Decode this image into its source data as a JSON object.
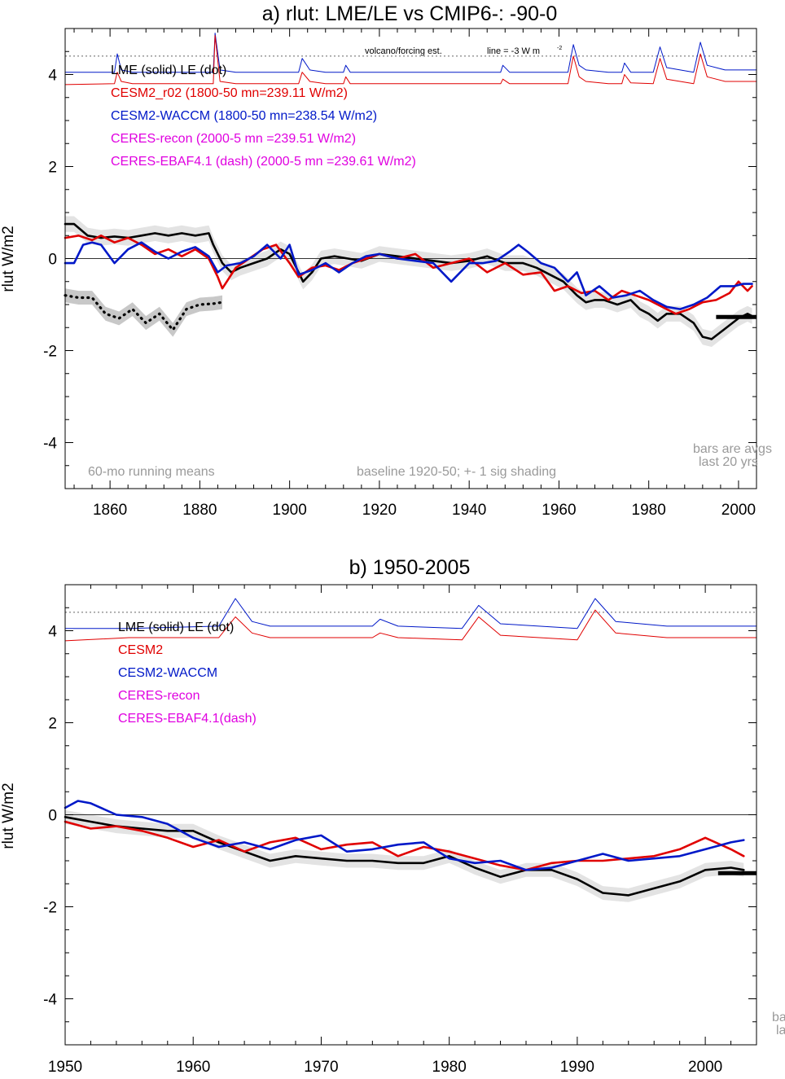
{
  "chart_data": [
    {
      "type": "line",
      "title": "a) rlut: LME/LE vs CMIP6-: -90-0",
      "xlabel": "",
      "ylabel": "rlut W/m2",
      "xlim": [
        1850,
        2004
      ],
      "ylim": [
        -5,
        5
      ],
      "xticks": [
        "1860",
        "1880",
        "1900",
        "1920",
        "1940",
        "1960",
        "1980",
        "2000"
      ],
      "xtick_values": [
        1860,
        1880,
        1900,
        1920,
        1940,
        1960,
        1980,
        2000
      ],
      "yticks": [
        "-4",
        "-2",
        "0",
        "2",
        "4"
      ],
      "ytick_values": [
        -4,
        -2,
        0,
        2,
        4
      ],
      "legend": [
        {
          "label": "LME (solid)   LE (dot)",
          "color": "#000000"
        },
        {
          "label": "CESM2_r02 (1800-50 mn=239.11 W/m2)",
          "color": "#e00000"
        },
        {
          "label": "CESM2-WACCM (1800-50 mn=238.54 W/m2)",
          "color": "#0018c8"
        },
        {
          "label": "CERES-recon (2000-5 mn =239.51 W/m2)",
          "color": "#e000e0"
        },
        {
          "label": "CERES-EBAF4.1 (dash) (2000-5 mn =239.61 W/m2)",
          "color": "#e000e0"
        }
      ],
      "annotations": {
        "volcano": "volcano/forcing est.",
        "line_note": "line = -3 W m",
        "line_note_sup": "-2",
        "left_note": "60-mo running means",
        "mid_note": "baseline 1920-50; +- 1 sig shading",
        "bars_note1": "bars are avgs",
        "bars_note2": "last 20 yrs"
      },
      "volcano_baseline": 4.4,
      "series": [
        {
          "name": "LME",
          "color": "#000000",
          "style": "solid",
          "x": [
            1850,
            1852,
            1855,
            1858,
            1861,
            1864,
            1867,
            1870,
            1873,
            1876,
            1879,
            1882,
            1883,
            1885,
            1887,
            1889,
            1892,
            1895,
            1898,
            1900,
            1902,
            1903,
            1905,
            1907,
            1910,
            1913,
            1916,
            1920,
            1924,
            1928,
            1932,
            1936,
            1940,
            1944,
            1948,
            1952,
            1955,
            1958,
            1961,
            1964,
            1966,
            1968,
            1970,
            1973,
            1976,
            1978,
            1980,
            1982,
            1984,
            1987,
            1990,
            1992,
            1994,
            1996,
            1998,
            2000,
            2002,
            2003
          ],
          "values": [
            0.75,
            0.75,
            0.5,
            0.45,
            0.48,
            0.45,
            0.5,
            0.55,
            0.5,
            0.55,
            0.5,
            0.55,
            0.3,
            -0.1,
            -0.3,
            -0.2,
            -0.1,
            0.0,
            0.2,
            0.1,
            -0.3,
            -0.5,
            -0.3,
            0.0,
            0.05,
            0.0,
            -0.05,
            0.1,
            0.05,
            0.0,
            -0.05,
            -0.1,
            -0.05,
            0.05,
            -0.1,
            -0.1,
            -0.2,
            -0.35,
            -0.5,
            -0.8,
            -0.95,
            -0.9,
            -0.9,
            -1.0,
            -0.9,
            -1.1,
            -1.2,
            -1.35,
            -1.2,
            -1.2,
            -1.4,
            -1.7,
            -1.75,
            -1.6,
            -1.45,
            -1.3,
            -1.2,
            -1.25
          ]
        },
        {
          "name": "CESM2_r02",
          "color": "#e00000",
          "style": "solid",
          "x": [
            1850,
            1853,
            1856,
            1858,
            1861,
            1864,
            1867,
            1870,
            1873,
            1876,
            1879,
            1882,
            1884,
            1885,
            1886,
            1888,
            1891,
            1894,
            1897,
            1900,
            1902,
            1905,
            1908,
            1911,
            1914,
            1917,
            1920,
            1924,
            1928,
            1932,
            1936,
            1940,
            1944,
            1948,
            1952,
            1956,
            1959,
            1962,
            1965,
            1968,
            1971,
            1974,
            1977,
            1980,
            1983,
            1986,
            1989,
            1992,
            1995,
            1998,
            2000,
            2002,
            2003
          ],
          "values": [
            0.45,
            0.5,
            0.4,
            0.5,
            0.35,
            0.45,
            0.3,
            0.1,
            0.2,
            0.05,
            0.2,
            0.0,
            -0.4,
            -0.65,
            -0.5,
            -0.2,
            0.0,
            0.2,
            0.3,
            -0.1,
            -0.4,
            -0.2,
            -0.15,
            -0.25,
            -0.1,
            0.0,
            0.1,
            0.0,
            0.1,
            -0.2,
            -0.1,
            0.0,
            -0.3,
            -0.1,
            -0.35,
            -0.3,
            -0.7,
            -0.6,
            -0.75,
            -0.7,
            -0.9,
            -0.7,
            -0.8,
            -0.9,
            -1.05,
            -1.2,
            -1.1,
            -0.95,
            -0.9,
            -0.75,
            -0.5,
            -0.7,
            -0.6
          ]
        },
        {
          "name": "CESM2-WACCM",
          "color": "#0018c8",
          "style": "solid",
          "x": [
            1850,
            1852,
            1854,
            1856,
            1858,
            1861,
            1864,
            1867,
            1870,
            1873,
            1876,
            1879,
            1882,
            1884,
            1886,
            1889,
            1892,
            1895,
            1898,
            1900,
            1902,
            1905,
            1908,
            1911,
            1914,
            1917,
            1920,
            1924,
            1928,
            1932,
            1936,
            1940,
            1943,
            1946,
            1949,
            1951,
            1953,
            1956,
            1959,
            1962,
            1964,
            1966,
            1969,
            1972,
            1975,
            1978,
            1981,
            1984,
            1987,
            1990,
            1993,
            1996,
            1999,
            2001,
            2003
          ],
          "values": [
            -0.1,
            -0.1,
            0.3,
            0.35,
            0.3,
            -0.1,
            0.2,
            0.35,
            0.15,
            0.0,
            0.15,
            0.25,
            0.05,
            -0.3,
            -0.15,
            -0.1,
            0.05,
            0.3,
            0.0,
            0.3,
            -0.35,
            -0.25,
            -0.1,
            -0.3,
            -0.1,
            0.05,
            0.1,
            0.0,
            -0.05,
            -0.1,
            -0.5,
            -0.1,
            -0.1,
            -0.05,
            0.15,
            0.3,
            0.15,
            -0.1,
            -0.2,
            -0.5,
            -0.3,
            -0.8,
            -0.6,
            -0.85,
            -0.8,
            -0.7,
            -0.9,
            -1.05,
            -1.1,
            -1.0,
            -0.85,
            -0.6,
            -0.6,
            -0.55,
            -0.55
          ]
        },
        {
          "name": "LE (dot)",
          "color": "#000000",
          "style": "dotted",
          "x": [
            1850,
            1853,
            1856,
            1859,
            1862,
            1865,
            1868,
            1871,
            1874,
            1877,
            1880,
            1883,
            1885
          ],
          "values": [
            -0.8,
            -0.85,
            -0.85,
            -1.2,
            -1.3,
            -1.1,
            -1.4,
            -1.2,
            -1.55,
            -1.1,
            -1.0,
            -0.98,
            -0.95
          ]
        },
        {
          "name": "CESM2-WACCM volcano/forcing",
          "color": "#0018c8",
          "style": "thin",
          "x": [
            1850,
            1861,
            1861.6,
            1862.5,
            1865,
            1883,
            1883.4,
            1884.5,
            1888,
            1902,
            1902.8,
            1904.5,
            1908,
            1912,
            1912.5,
            1913.5,
            1930,
            1947,
            1947.5,
            1949,
            1962,
            1963.2,
            1964.5,
            1966,
            1971,
            1974,
            1974.6,
            1976,
            1981,
            1982.5,
            1984,
            1990,
            1991.5,
            1993,
            1997,
            2004
          ],
          "values": [
            4.05,
            4.05,
            4.45,
            4.1,
            4.05,
            4.05,
            4.9,
            4.1,
            4.05,
            4.05,
            4.35,
            4.1,
            4.05,
            4.05,
            4.2,
            4.05,
            4.05,
            4.05,
            4.2,
            4.05,
            4.05,
            4.65,
            4.2,
            4.1,
            4.05,
            4.05,
            4.25,
            4.05,
            4.05,
            4.6,
            4.15,
            4.05,
            4.7,
            4.2,
            4.1,
            4.1
          ]
        },
        {
          "name": "CESM2 volcano/forcing",
          "color": "#e00000",
          "style": "thin",
          "x": [
            1850,
            1861,
            1861.6,
            1862.5,
            1865,
            1883,
            1883.4,
            1884.5,
            1888,
            1902,
            1902.8,
            1904.5,
            1908,
            1912,
            1912.5,
            1913.5,
            1930,
            1947,
            1947.5,
            1949,
            1962,
            1963.2,
            1964.5,
            1966,
            1971,
            1974,
            1974.6,
            1976,
            1981,
            1982.5,
            1984,
            1990,
            1991.5,
            1993,
            1997,
            2004
          ],
          "values": [
            3.78,
            3.8,
            4.05,
            3.85,
            3.8,
            3.8,
            4.85,
            3.85,
            3.8,
            3.8,
            4.05,
            3.85,
            3.8,
            3.8,
            3.95,
            3.8,
            3.8,
            3.8,
            3.9,
            3.8,
            3.8,
            4.4,
            3.95,
            3.85,
            3.8,
            3.8,
            4.0,
            3.82,
            3.8,
            4.35,
            3.9,
            3.8,
            4.45,
            3.95,
            3.85,
            3.85
          ]
        }
      ],
      "bar": {
        "x0": 1995,
        "x1": 2004,
        "y": -1.27
      }
    },
    {
      "type": "line",
      "title": "b) 1950-2005",
      "xlabel": "",
      "ylabel": "rlut W/m2",
      "xlim": [
        1950,
        2004
      ],
      "ylim": [
        -5,
        5
      ],
      "xticks": [
        "1950",
        "1960",
        "1970",
        "1980",
        "1990",
        "2000"
      ],
      "xtick_values": [
        1950,
        1960,
        1970,
        1980,
        1990,
        2000
      ],
      "yticks": [
        "-4",
        "-2",
        "0",
        "2",
        "4"
      ],
      "ytick_values": [
        -4,
        -2,
        0,
        2,
        4
      ],
      "legend": [
        {
          "label": "LME (solid)       LE (dot)",
          "color": "#000000"
        },
        {
          "label": "CESM2",
          "color": "#e00000"
        },
        {
          "label": "CESM2-WACCM",
          "color": "#0018c8"
        },
        {
          "label": "CERES-recon",
          "color": "#e000e0"
        },
        {
          "label": "CERES-EBAF4.1(dash)",
          "color": "#e000e0"
        }
      ],
      "annotations": {
        "bars_note1": "ba",
        "bars_note2": "la"
      },
      "volcano_baseline": 4.4,
      "series": [
        {
          "name": "LME",
          "color": "#000000",
          "style": "solid",
          "x": [
            1950,
            1952,
            1954,
            1956,
            1958,
            1960,
            1962,
            1964,
            1966,
            1968,
            1970,
            1972,
            1974,
            1976,
            1978,
            1980,
            1982,
            1984,
            1986,
            1988,
            1990,
            1992,
            1994,
            1996,
            1998,
            2000,
            2002,
            2003
          ],
          "values": [
            -0.05,
            -0.15,
            -0.25,
            -0.3,
            -0.35,
            -0.35,
            -0.6,
            -0.8,
            -1.0,
            -0.9,
            -0.95,
            -1.0,
            -1.0,
            -1.05,
            -1.05,
            -0.9,
            -1.15,
            -1.35,
            -1.2,
            -1.2,
            -1.4,
            -1.7,
            -1.75,
            -1.6,
            -1.45,
            -1.2,
            -1.15,
            -1.2
          ]
        },
        {
          "name": "CESM2",
          "color": "#e00000",
          "style": "solid",
          "x": [
            1950,
            1952,
            1954,
            1956,
            1958,
            1960,
            1962,
            1964,
            1966,
            1968,
            1970,
            1972,
            1974,
            1976,
            1978,
            1980,
            1982,
            1984,
            1986,
            1988,
            1990,
            1992,
            1994,
            1996,
            1998,
            2000,
            2002,
            2003
          ],
          "values": [
            -0.15,
            -0.3,
            -0.25,
            -0.35,
            -0.5,
            -0.7,
            -0.55,
            -0.8,
            -0.6,
            -0.5,
            -0.75,
            -0.65,
            -0.6,
            -0.9,
            -0.7,
            -0.8,
            -0.95,
            -1.1,
            -1.2,
            -1.05,
            -1.0,
            -1.0,
            -0.95,
            -0.9,
            -0.75,
            -0.5,
            -0.75,
            -0.9
          ]
        },
        {
          "name": "CESM2-WACCM",
          "color": "#0018c8",
          "style": "solid",
          "x": [
            1950,
            1951,
            1952,
            1954,
            1956,
            1958,
            1960,
            1962,
            1964,
            1966,
            1968,
            1970,
            1972,
            1974,
            1976,
            1978,
            1980,
            1982,
            1984,
            1986,
            1988,
            1990,
            1992,
            1994,
            1996,
            1998,
            2000,
            2002,
            2003
          ],
          "values": [
            0.15,
            0.3,
            0.25,
            0.0,
            -0.05,
            -0.2,
            -0.5,
            -0.7,
            -0.6,
            -0.75,
            -0.55,
            -0.45,
            -0.8,
            -0.75,
            -0.65,
            -0.6,
            -0.95,
            -1.05,
            -1.0,
            -1.2,
            -1.15,
            -1.0,
            -0.85,
            -1.0,
            -0.95,
            -0.9,
            -0.75,
            -0.6,
            -0.55
          ]
        },
        {
          "name": "CESM2-WACCM volcano/forcing",
          "color": "#0018c8",
          "style": "thin",
          "x": [
            1950,
            1955,
            1962,
            1963.3,
            1964.6,
            1966,
            1974,
            1974.6,
            1976,
            1981,
            1982.3,
            1984,
            1990,
            1991.4,
            1993,
            1997,
            2004
          ],
          "values": [
            4.05,
            4.05,
            4.1,
            4.7,
            4.2,
            4.1,
            4.1,
            4.25,
            4.1,
            4.05,
            4.55,
            4.15,
            4.05,
            4.7,
            4.2,
            4.1,
            4.1
          ]
        },
        {
          "name": "CESM2 volcano/forcing",
          "color": "#e00000",
          "style": "thin",
          "x": [
            1950,
            1955,
            1962,
            1963.3,
            1964.6,
            1966,
            1974,
            1974.6,
            1976,
            1981,
            1982.3,
            1984,
            1990,
            1991.4,
            1993,
            1997,
            2004
          ],
          "values": [
            3.78,
            3.85,
            3.85,
            4.3,
            3.95,
            3.85,
            3.85,
            3.95,
            3.85,
            3.8,
            4.3,
            3.9,
            3.8,
            4.45,
            3.95,
            3.85,
            3.85
          ]
        }
      ],
      "bar": {
        "x0": 2001,
        "x1": 2004,
        "y": -1.27
      }
    }
  ]
}
